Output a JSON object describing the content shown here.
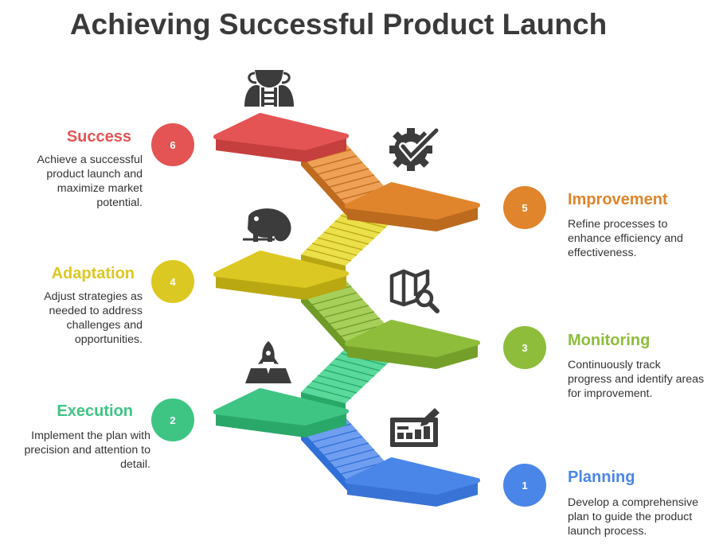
{
  "title": "Achieving Successful Product Launch",
  "steps": [
    {
      "num": "1",
      "heading": "Planning",
      "text": "Develop a comprehensive plan to guide the product launch process.",
      "color": "#4a86e8",
      "icon": "planning-board-icon"
    },
    {
      "num": "2",
      "heading": "Execution",
      "text": "Implement the plan with precision and attention to detail.",
      "color": "#3ec583",
      "icon": "rocket-launch-icon"
    },
    {
      "num": "3",
      "heading": "Monitoring",
      "text": "Continuously track progress and identify areas for improvement.",
      "color": "#8ebd3c",
      "icon": "map-magnifier-icon"
    },
    {
      "num": "4",
      "heading": "Adaptation",
      "text": "Adjust strategies as needed to address challenges and opportunities.",
      "color": "#dcc822",
      "icon": "chameleon-icon"
    },
    {
      "num": "5",
      "heading": "Improvement",
      "text": "Refine processes to enhance efficiency and effectiveness.",
      "color": "#e0852c",
      "icon": "gear-check-icon"
    },
    {
      "num": "6",
      "heading": "Success",
      "text": "Achieve a successful product launch and maximize market potential.",
      "color": "#e45454",
      "icon": "trophy-ladder-icon"
    }
  ]
}
